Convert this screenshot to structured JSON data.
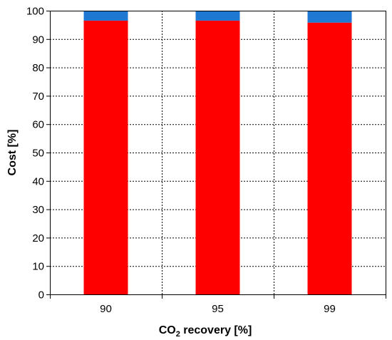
{
  "chart_data": {
    "type": "bar",
    "stacked": true,
    "categories": [
      "90",
      "95",
      "99"
    ],
    "series": [
      {
        "values": [
          96.5,
          96.5,
          95.8
        ],
        "color": "#ff0000"
      },
      {
        "values": [
          3.5,
          3.5,
          4.2
        ],
        "color": "#1f78d1"
      }
    ],
    "xlabel": {
      "main": "CO",
      "sub": "2",
      "rest": " recovery [%]"
    },
    "ylabel": "Cost [%]",
    "ylim": [
      0,
      100
    ],
    "yticks": [
      0,
      10,
      20,
      30,
      40,
      50,
      60,
      70,
      80,
      90,
      100
    ],
    "grid": {
      "horizontal": "dotted",
      "vertical": "dotted"
    },
    "legend": "none"
  }
}
